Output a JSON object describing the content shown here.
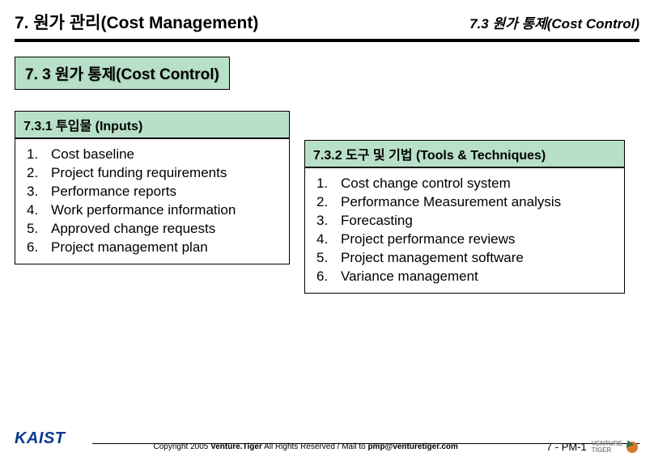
{
  "header": {
    "left": "7. 원가 관리(Cost Management)",
    "right": "7.3 원가 통제(Cost Control)"
  },
  "section": {
    "title": "7. 3 원가 통제(Cost Control)"
  },
  "inputs": {
    "title": "7.3.1 투입물 (Inputs)",
    "items": [
      {
        "num": "1.",
        "text": " Cost baseline"
      },
      {
        "num": "2.",
        "text": " Project funding requirements"
      },
      {
        "num": "3.",
        "text": " Performance reports"
      },
      {
        "num": "4.",
        "text": " Work performance information"
      },
      {
        "num": "5.",
        "text": " Approved change requests"
      },
      {
        "num": "6.",
        "text": " Project management plan"
      }
    ]
  },
  "tools": {
    "title": "7.3.2 도구 및 기법 (Tools & Techniques)",
    "items": [
      {
        "num": "1.",
        "text": "Cost change control system"
      },
      {
        "num": "2.",
        "text": "Performance Measurement analysis"
      },
      {
        "num": "3.",
        "text": "Forecasting"
      },
      {
        "num": "4.",
        "text": "Project performance reviews"
      },
      {
        "num": "5.",
        "text": "Project management software"
      },
      {
        "num": "6.",
        "text": "Variance management"
      }
    ]
  },
  "footer": {
    "logo": "KAIST",
    "copyright_prefix": "Copyright 2005 ",
    "copyright_brand": "Venture.Tiger",
    "copyright_mid": " All Rights Reserved / Mail to ",
    "copyright_mail": "pmp@venturetiger.com",
    "page": "7 - PM-1",
    "vt1": "VENTURE",
    "vt2": "TIGER"
  }
}
